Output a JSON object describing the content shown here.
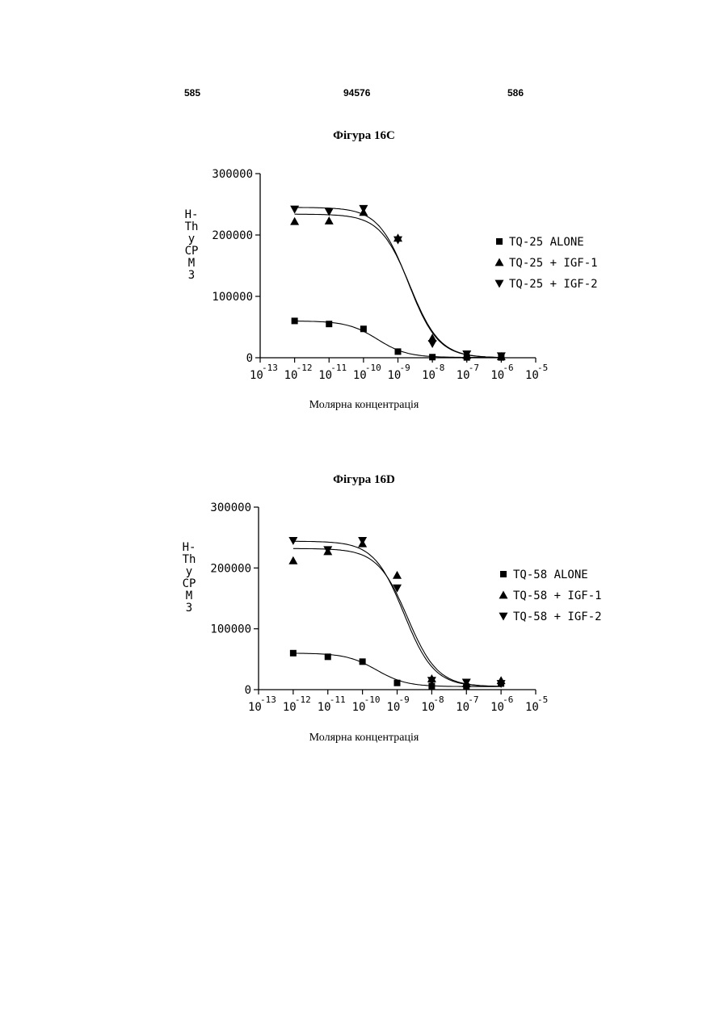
{
  "page_header": {
    "left": "585",
    "center": "94576",
    "right": "586"
  },
  "chart_data": [
    {
      "type": "scatter",
      "title": "Фігура 16C",
      "xlabel": "Молярна концентрація",
      "ylabel_lines": [
        "H-",
        "Th",
        "y",
        "CP",
        "M",
        "3"
      ],
      "x_scale": "log",
      "xlim": [
        1e-13,
        1e-05
      ],
      "ylim": [
        0,
        300000
      ],
      "yticks": [
        0,
        100000,
        200000,
        300000
      ],
      "ytick_labels": [
        "0",
        "100000",
        "200000",
        "300000"
      ],
      "xticks": [
        {
          "base": "10",
          "exp": "-13",
          "value": 1e-13
        },
        {
          "base": "10",
          "exp": "-12",
          "value": 1e-12
        },
        {
          "base": "10",
          "exp": "-11",
          "value": 1e-11
        },
        {
          "base": "10",
          "exp": "-10",
          "value": 1e-10
        },
        {
          "base": "10",
          "exp": "-9",
          "value": 1e-09
        },
        {
          "base": "10",
          "exp": "-8",
          "value": 1e-08
        },
        {
          "base": "10",
          "exp": "-7",
          "value": 1e-07
        },
        {
          "base": "10",
          "exp": "-6",
          "value": 1e-06
        },
        {
          "base": "10",
          "exp": "-5",
          "value": 1e-05
        }
      ],
      "legend_position": "right",
      "series": [
        {
          "name": "TQ-25 ALONE",
          "marker": "square",
          "x": [
            1e-12,
            1e-11,
            1e-10,
            1e-09,
            1e-08,
            1e-07,
            1e-06
          ],
          "y": [
            60000,
            55000,
            47000,
            10000,
            1000,
            500,
            500
          ],
          "fit": {
            "top": 60000,
            "bottom": 500,
            "log_ec50": -9.6,
            "hill": 1.0
          }
        },
        {
          "name": "TQ-25 + IGF-1",
          "marker": "triangle-up",
          "x": [
            1e-12,
            1e-11,
            1e-10,
            1e-09,
            1e-08,
            1e-07,
            1e-06
          ],
          "y": [
            222000,
            223000,
            237000,
            195000,
            32000,
            4000,
            2000
          ],
          "fit": {
            "top": 234000,
            "bottom": 0,
            "log_ec50": -8.65,
            "hill": 1.0
          }
        },
        {
          "name": "TQ-25 + IGF-2",
          "marker": "triangle-down",
          "x": [
            1e-12,
            1e-11,
            1e-10,
            1e-09,
            1e-08,
            1e-07,
            1e-06
          ],
          "y": [
            242000,
            238000,
            243000,
            192000,
            23000,
            6000,
            3000
          ],
          "fit": {
            "top": 245000,
            "bottom": 0,
            "log_ec50": -8.7,
            "hill": 1.0
          }
        }
      ]
    },
    {
      "type": "scatter",
      "title": "Фігура 16D",
      "xlabel": "Молярна концентрація",
      "ylabel_lines": [
        "H-",
        "Th",
        "y",
        "CP",
        "M",
        "3"
      ],
      "x_scale": "log",
      "xlim": [
        1e-13,
        1e-05
      ],
      "ylim": [
        0,
        300000
      ],
      "yticks": [
        0,
        100000,
        200000,
        300000
      ],
      "ytick_labels": [
        "0",
        "100000",
        "200000",
        "300000"
      ],
      "xticks": [
        {
          "base": "10",
          "exp": "-13",
          "value": 1e-13
        },
        {
          "base": "10",
          "exp": "-12",
          "value": 1e-12
        },
        {
          "base": "10",
          "exp": "-11",
          "value": 1e-11
        },
        {
          "base": "10",
          "exp": "-10",
          "value": 1e-10
        },
        {
          "base": "10",
          "exp": "-9",
          "value": 1e-09
        },
        {
          "base": "10",
          "exp": "-8",
          "value": 1e-08
        },
        {
          "base": "10",
          "exp": "-7",
          "value": 1e-07
        },
        {
          "base": "10",
          "exp": "-6",
          "value": 1e-06
        },
        {
          "base": "10",
          "exp": "-5",
          "value": 1e-05
        }
      ],
      "legend_position": "right",
      "series": [
        {
          "name": "TQ-58 ALONE",
          "marker": "square",
          "x": [
            1e-12,
            1e-11,
            1e-10,
            1e-09,
            1e-08,
            1e-07,
            1e-06
          ],
          "y": [
            60000,
            54000,
            46000,
            11000,
            6000,
            5000,
            10000
          ],
          "fit": {
            "top": 60000,
            "bottom": 5000,
            "log_ec50": -9.6,
            "hill": 1.0
          }
        },
        {
          "name": "TQ-58 + IGF-1",
          "marker": "triangle-up",
          "x": [
            1e-12,
            1e-11,
            1e-10,
            1e-09,
            1e-08,
            1e-07,
            1e-06
          ],
          "y": [
            212000,
            227000,
            240000,
            188000,
            18000,
            10000,
            15000
          ],
          "fit": {
            "top": 232000,
            "bottom": 5000,
            "log_ec50": -8.7,
            "hill": 1.0
          }
        },
        {
          "name": "TQ-58 + IGF-2",
          "marker": "triangle-down",
          "x": [
            1e-12,
            1e-11,
            1e-10,
            1e-09,
            1e-08,
            1e-07,
            1e-06
          ],
          "y": [
            245000,
            230000,
            245000,
            167000,
            15000,
            12000,
            10000
          ],
          "fit": {
            "top": 244000,
            "bottom": 5000,
            "log_ec50": -8.8,
            "hill": 1.0
          }
        }
      ]
    }
  ]
}
